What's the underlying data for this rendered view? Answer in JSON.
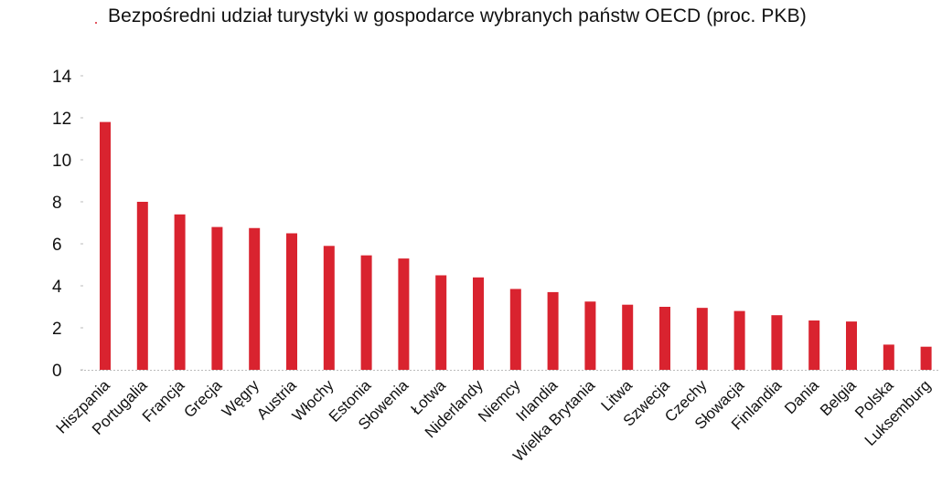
{
  "chart_data": {
    "type": "bar",
    "title": "Bezpośredni udział turystyki w gospodarce wybranych państw OECD (proc. PKB)",
    "categories": [
      "Hiszpania",
      "Portugalia",
      "Francja",
      "Grecja",
      "Węgry",
      "Austria",
      "Włochy",
      "Estonia",
      "Słowenia",
      "Łotwa",
      "Niderlandy",
      "Niemcy",
      "Irlandia",
      "Wielka Brytania",
      "Litwa",
      "Szwecja",
      "Czechy",
      "Słowacja",
      "Finlandia",
      "Dania",
      "Belgia",
      "Polska",
      "Luksemburg"
    ],
    "values": [
      11.8,
      8.0,
      7.4,
      6.8,
      6.75,
      6.5,
      5.9,
      5.45,
      5.3,
      4.5,
      4.4,
      3.85,
      3.7,
      3.25,
      3.1,
      3.0,
      2.95,
      2.8,
      2.6,
      2.35,
      2.3,
      1.2,
      1.1
    ],
    "yticks": [
      0,
      2,
      4,
      6,
      8,
      10,
      12,
      14
    ],
    "ylim": [
      0,
      14
    ],
    "xlabel": "",
    "ylabel": "",
    "grid": false,
    "legend": "none",
    "bar_color": "#d9232f",
    "axis_color": "#bbbbbb"
  }
}
